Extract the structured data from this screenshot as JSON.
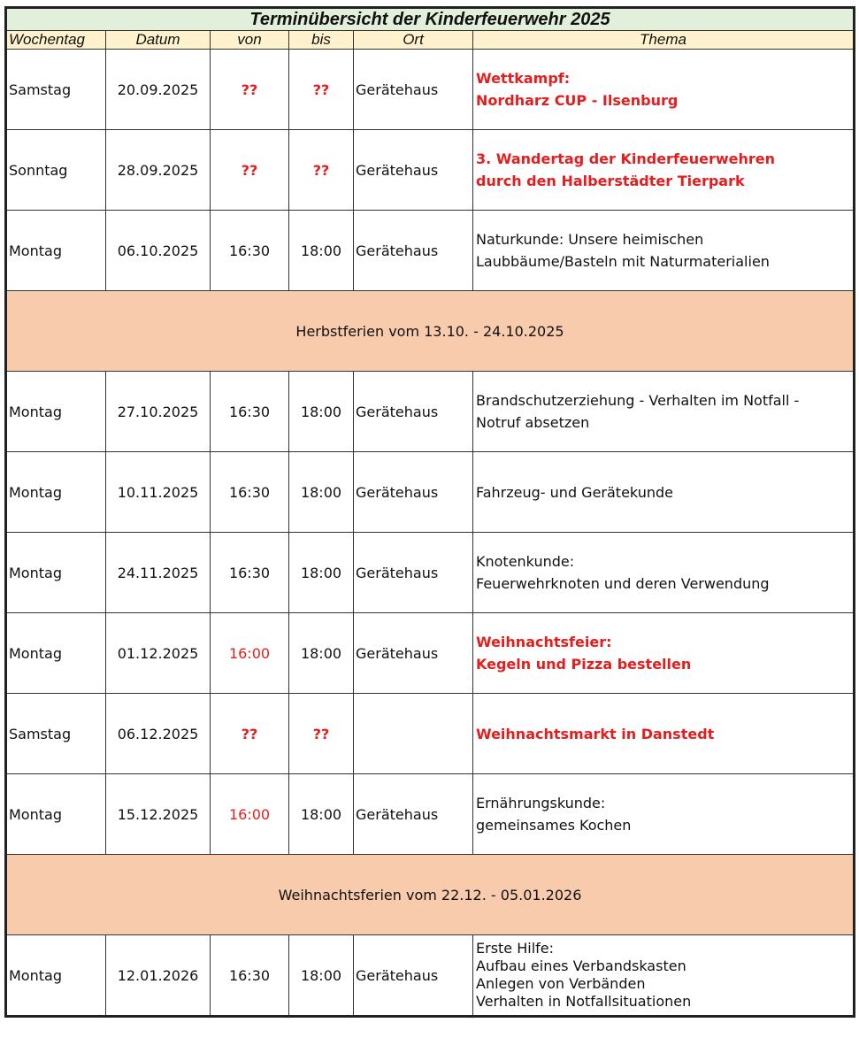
{
  "title": "Terminübersicht der Kinderfeuerwehr 2025",
  "headers": [
    "Wochentag",
    "Datum",
    "von",
    "bis",
    "Ort",
    "Thema"
  ],
  "colors": {
    "title_bg": "#e2efda",
    "header_bg": "#fff2cc",
    "holiday_bg": "#f8cbad",
    "highlight": "#e41e1e"
  },
  "rows": [
    {
      "type": "event",
      "day": "Samstag",
      "date": "20.09.2025",
      "from": "??",
      "to": "??",
      "from_red": true,
      "to_red": true,
      "place": "Gerätehaus",
      "topic": [
        "Wettkampf:",
        "Nordharz CUP - Ilsenburg"
      ],
      "topic_red": true
    },
    {
      "type": "event",
      "day": "Sonntag",
      "date": "28.09.2025",
      "from": "??",
      "to": "??",
      "from_red": true,
      "to_red": true,
      "place": "Gerätehaus",
      "topic": [
        "3. Wandertag der Kinderfeuerwehren",
        "durch den Halberstädter Tierpark"
      ],
      "topic_red": true
    },
    {
      "type": "event",
      "day": "Montag",
      "date": "06.10.2025",
      "from": "16:30",
      "to": "18:00",
      "place": "Gerätehaus",
      "topic": [
        "Naturkunde: Unsere heimischen",
        "Laubbäume/Basteln mit Naturmaterialien"
      ]
    },
    {
      "type": "holiday",
      "text": "Herbstferien vom 13.10. - 24.10.2025"
    },
    {
      "type": "event",
      "day": "Montag",
      "date": "27.10.2025",
      "from": "16:30",
      "to": "18:00",
      "place": "Gerätehaus",
      "topic": [
        "Brandschutzerziehung - Verhalten im Notfall -",
        "Notruf absetzen"
      ]
    },
    {
      "type": "event",
      "day": "Montag",
      "date": "10.11.2025",
      "from": "16:30",
      "to": "18:00",
      "place": "Gerätehaus",
      "topic": [
        "Fahrzeug- und Gerätekunde"
      ]
    },
    {
      "type": "event",
      "day": "Montag",
      "date": "24.11.2025",
      "from": "16:30",
      "to": "18:00",
      "place": "Gerätehaus",
      "topic": [
        "Knotenkunde:",
        "Feuerwehrknoten und deren Verwendung"
      ]
    },
    {
      "type": "event",
      "day": "Montag",
      "date": "01.12.2025",
      "from": "16:00",
      "to": "18:00",
      "from_red_plain": true,
      "place": "Gerätehaus",
      "topic": [
        "Weihnachtsfeier:",
        "Kegeln und Pizza bestellen"
      ],
      "topic_red": true
    },
    {
      "type": "event",
      "day": "Samstag",
      "date": "06.12.2025",
      "from": "??",
      "to": "??",
      "from_red": true,
      "to_red": true,
      "place": "",
      "topic": [
        "Weihnachtsmarkt in Danstedt"
      ],
      "topic_red": true
    },
    {
      "type": "event",
      "day": "Montag",
      "date": "15.12.2025",
      "from": "16:00",
      "to": "18:00",
      "from_red_plain": true,
      "place": "Gerätehaus",
      "topic": [
        "Ernährungskunde:",
        "gemeinsames Kochen"
      ]
    },
    {
      "type": "holiday",
      "text": "Weihnachtsferien vom 22.12. - 05.01.2026"
    },
    {
      "type": "event",
      "day": "Montag",
      "date": "12.01.2026",
      "from": "16:30",
      "to": "18:00",
      "place": "Gerätehaus",
      "topic": [
        "Erste Hilfe:",
        "Aufbau eines Verbandskasten",
        "Anlegen von Verbänden",
        "Verhalten in Notfallsituationen"
      ]
    }
  ]
}
